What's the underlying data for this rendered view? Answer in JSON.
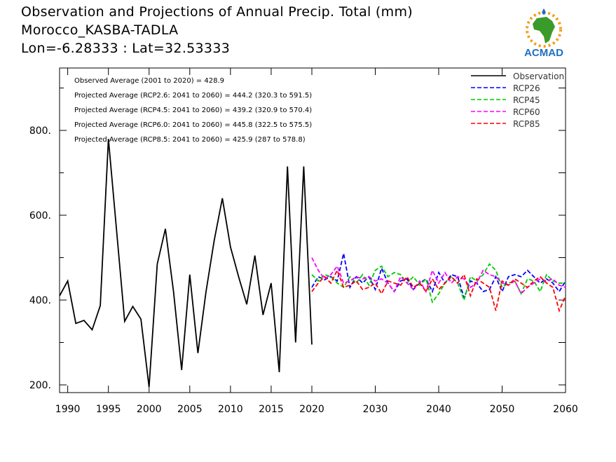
{
  "header": {
    "title_line1": "Observation and Projections of Annual Precip. Total (mm)",
    "title_line2": "Morocco_KASBA-TADLA",
    "title_line3": "Lon=-6.28333 : Lat=32.53333"
  },
  "logo": {
    "text": "ACMAD",
    "icon": "africa-sun-logo",
    "color": "#1f6fbf",
    "map_color": "#3a9a2a",
    "sun_color": "#f0a020"
  },
  "chart_data": {
    "type": "line",
    "x_ticks": [
      1990,
      1995,
      2000,
      2005,
      2010,
      2015,
      2020,
      2030,
      2040,
      2050,
      2060
    ],
    "y_ticks": [
      200,
      400,
      600,
      800
    ],
    "y_tick_labels": [
      "200.",
      "400.",
      "600.",
      "800."
    ],
    "ylim": [
      180,
      970
    ],
    "grid": false,
    "legend_position": "top-right",
    "annotations": [
      "Observed Average (2001 to 2020) = 428.9",
      "Projected Average (RCP2.6: 2041 to 2060) = 444.2 (320.3 to 591.5)",
      "Projected Average (RCP4.5: 2041 to 2060) = 439.2 (320.9 to 570.4)",
      "Projected Average (RCP6.0: 2041 to 2060) = 445.8 (322.5 to 575.5)",
      "Projected Average (RCP8.5: 2041 to 2060) = 425.9 (287 to 578.8)"
    ],
    "series": [
      {
        "name": "Observation",
        "color": "#000000",
        "dash": false,
        "x": [
          1989,
          1990,
          1991,
          1992,
          1993,
          1994,
          1995,
          1996,
          1997,
          1998,
          1999,
          2000,
          2001,
          2002,
          2003,
          2004,
          2005,
          2006,
          2007,
          2008,
          2009,
          2010,
          2011,
          2012,
          2013,
          2014,
          2015,
          2016,
          2017,
          2018,
          2019,
          2020
        ],
        "y": [
          410,
          445,
          345,
          352,
          330,
          387,
          780,
          565,
          350,
          385,
          355,
          195,
          485,
          568,
          420,
          235,
          460,
          275,
          420,
          540,
          640,
          525,
          455,
          390,
          505,
          365,
          440,
          230,
          715,
          300,
          715,
          295
        ]
      },
      {
        "name": "RCP26",
        "color": "#0000ff",
        "dash": true,
        "x": [
          2020,
          2021,
          2022,
          2023,
          2024,
          2025,
          2026,
          2027,
          2028,
          2029,
          2030,
          2031,
          2032,
          2033,
          2034,
          2035,
          2036,
          2037,
          2038,
          2039,
          2040,
          2041,
          2042,
          2043,
          2044,
          2045,
          2046,
          2047,
          2048,
          2049,
          2050,
          2051,
          2052,
          2053,
          2054,
          2055,
          2056,
          2057,
          2058,
          2059,
          2060
        ],
        "y": [
          430,
          455,
          448,
          455,
          445,
          510,
          430,
          455,
          440,
          455,
          425,
          475,
          440,
          420,
          445,
          450,
          425,
          440,
          450,
          420,
          465,
          440,
          460,
          455,
          405,
          445,
          440,
          420,
          425,
          455,
          420,
          455,
          460,
          455,
          470,
          455,
          440,
          450,
          440,
          420,
          445
        ]
      },
      {
        "name": "RCP45",
        "color": "#00cc00",
        "dash": true,
        "x": [
          2020,
          2021,
          2022,
          2023,
          2024,
          2025,
          2026,
          2027,
          2028,
          2029,
          2030,
          2031,
          2032,
          2033,
          2034,
          2035,
          2036,
          2037,
          2038,
          2039,
          2040,
          2041,
          2042,
          2043,
          2044,
          2045,
          2046,
          2047,
          2048,
          2049,
          2050,
          2051,
          2052,
          2053,
          2054,
          2055,
          2056,
          2057,
          2058,
          2059,
          2060
        ],
        "y": [
          460,
          445,
          460,
          455,
          440,
          430,
          455,
          440,
          460,
          435,
          470,
          480,
          455,
          465,
          460,
          440,
          455,
          435,
          450,
          395,
          415,
          440,
          455,
          440,
          400,
          455,
          445,
          460,
          485,
          470,
          430,
          440,
          445,
          415,
          450,
          445,
          420,
          460,
          445,
          440,
          440
        ]
      },
      {
        "name": "RCP60",
        "color": "#ff00ff",
        "dash": true,
        "x": [
          2020,
          2021,
          2022,
          2023,
          2024,
          2025,
          2026,
          2027,
          2028,
          2029,
          2030,
          2031,
          2032,
          2033,
          2034,
          2035,
          2036,
          2037,
          2038,
          2039,
          2040,
          2041,
          2042,
          2043,
          2044,
          2045,
          2046,
          2047,
          2048,
          2049,
          2050,
          2051,
          2052,
          2053,
          2054,
          2055,
          2056,
          2057,
          2058,
          2059,
          2060
        ],
        "y": [
          500,
          470,
          450,
          460,
          480,
          440,
          445,
          455,
          450,
          455,
          445,
          450,
          440,
          420,
          455,
          440,
          425,
          445,
          420,
          470,
          440,
          465,
          440,
          455,
          450,
          430,
          440,
          470,
          460,
          455,
          440,
          435,
          445,
          415,
          430,
          440,
          450,
          445,
          450,
          435,
          430
        ]
      },
      {
        "name": "RCP85",
        "color": "#ff0000",
        "dash": true,
        "x": [
          2020,
          2021,
          2022,
          2023,
          2024,
          2025,
          2026,
          2027,
          2028,
          2029,
          2030,
          2031,
          2032,
          2033,
          2034,
          2035,
          2036,
          2037,
          2038,
          2039,
          2040,
          2041,
          2042,
          2043,
          2044,
          2045,
          2046,
          2047,
          2048,
          2049,
          2050,
          2051,
          2052,
          2053,
          2054,
          2055,
          2056,
          2057,
          2058,
          2059,
          2060
        ],
        "y": [
          420,
          440,
          455,
          440,
          470,
          430,
          435,
          445,
          425,
          430,
          440,
          415,
          445,
          440,
          435,
          455,
          430,
          440,
          420,
          450,
          425,
          440,
          455,
          440,
          460,
          410,
          450,
          440,
          430,
          375,
          445,
          435,
          450,
          440,
          430,
          445,
          455,
          440,
          430,
          375,
          410
        ]
      }
    ]
  }
}
